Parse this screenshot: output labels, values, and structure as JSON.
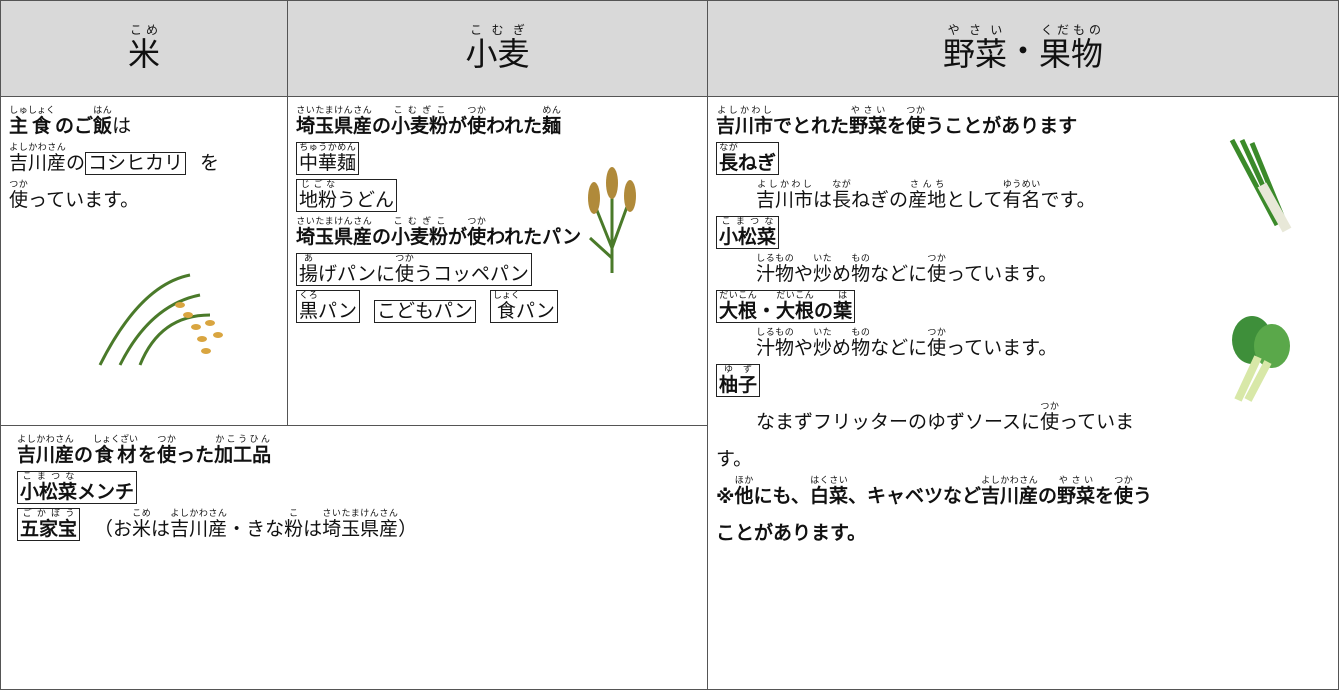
{
  "headers": [
    {
      "parts": [
        {
          "text": "米",
          "ruby": "こめ"
        }
      ]
    },
    {
      "parts": [
        {
          "text": "小麦",
          "ruby": "こむぎ"
        }
      ]
    },
    {
      "parts": [
        {
          "text": "野菜",
          "ruby": "やさい"
        },
        {
          "text": "・"
        },
        {
          "text": "果物",
          "ruby": "くだもの"
        }
      ]
    }
  ],
  "cells": [
    {
      "lines": [
        {
          "parts": [
            {
              "text": "主",
              "ruby": "しゅ",
              "bold": true
            },
            {
              "text": "食",
              "ruby": "しょく",
              "bold": true
            },
            {
              "text": "のご",
              "bold": true
            },
            {
              "text": "飯",
              "ruby": "はん",
              "bold": true
            },
            {
              "text": "は"
            }
          ]
        },
        {
          "parts": [
            {
              "text": "吉川産",
              "ruby": "よしかわさん"
            },
            {
              "text": "の"
            },
            {
              "box": [
                {
                  "text": "コシヒカリ"
                }
              ]
            },
            {
              "text": "を"
            }
          ]
        },
        {
          "parts": [
            {
              "text": "使",
              "ruby": "つか"
            },
            {
              "text": "っています。"
            }
          ]
        }
      ]
    },
    {
      "lines": [
        {
          "bold": true,
          "parts": [
            {
              "text": "埼玉県産",
              "ruby": "さいたまけんさん"
            },
            {
              "text": "の"
            },
            {
              "text": "小麦粉",
              "ruby": "こむぎこ"
            },
            {
              "text": "が"
            },
            {
              "text": "使",
              "ruby": "つか"
            },
            {
              "text": "われた"
            },
            {
              "text": "麺",
              "ruby": "めん"
            }
          ]
        },
        {
          "parts": [
            {
              "box": [
                {
                  "text": "中華麺",
                  "ruby": "ちゅうかめん"
                }
              ]
            }
          ]
        },
        {
          "parts": [
            {
              "box": [
                {
                  "text": "地粉",
                  "ruby": "じごな"
                },
                {
                  "text": "うどん"
                }
              ]
            }
          ]
        },
        {
          "bold": true,
          "parts": [
            {
              "text": "埼玉県産",
              "ruby": "さいたまけんさん"
            },
            {
              "text": "の"
            },
            {
              "text": "小麦粉",
              "ruby": "こむぎこ"
            },
            {
              "text": "が"
            },
            {
              "text": "使",
              "ruby": "つか"
            },
            {
              "text": "われたパン"
            }
          ]
        },
        {
          "parts": [
            {
              "box": [
                {
                  "text": "揚",
                  "ruby": "あ"
                },
                {
                  "text": "げパンに"
                },
                {
                  "text": "使",
                  "ruby": "つか"
                },
                {
                  "text": "うコッペパン"
                }
              ]
            }
          ]
        },
        {
          "parts": [
            {
              "box": [
                {
                  "text": "黒",
                  "ruby": "くろ"
                },
                {
                  "text": "パン"
                }
              ]
            },
            {
              "box": [
                {
                  "text": "こどもパン"
                }
              ]
            },
            {
              "box": [
                {
                  "text": "食",
                  "ruby": "しょく"
                },
                {
                  "text": "パン"
                }
              ]
            }
          ]
        }
      ]
    },
    {
      "lines": [
        {
          "bold": true,
          "parts": [
            {
              "text": "吉川産",
              "ruby": "よしかわさん"
            },
            {
              "text": "の"
            },
            {
              "text": "食材",
              "ruby": "しょくざい"
            },
            {
              "text": "を"
            },
            {
              "text": "使",
              "ruby": "つか"
            },
            {
              "text": "った"
            },
            {
              "text": "加工品",
              "ruby": "かこうひん"
            }
          ]
        },
        {
          "bold": true,
          "parts": [
            {
              "box": [
                {
                  "text": "小松菜",
                  "ruby": "こまつな"
                },
                {
                  "text": "メンチ"
                }
              ]
            }
          ]
        },
        {
          "parts": [
            {
              "box": [
                {
                  "text": "五家宝",
                  "ruby": "ごかぼう",
                  "bold": true
                }
              ]
            },
            {
              "text": "（お"
            },
            {
              "text": "米",
              "ruby": "こめ"
            },
            {
              "text": "は"
            },
            {
              "text": "吉川産",
              "ruby": "よしかわさん"
            },
            {
              "text": "・きな"
            },
            {
              "text": "粉",
              "ruby": "こ"
            },
            {
              "text": "は"
            },
            {
              "text": "埼玉県産",
              "ruby": "さいたまけんさん"
            },
            {
              "text": "）"
            }
          ]
        }
      ]
    },
    {
      "lines": [
        {
          "bold": true,
          "parts": [
            {
              "text": "吉川市",
              "ruby": "よしかわし"
            },
            {
              "text": "でとれた"
            },
            {
              "text": "野菜",
              "ruby": "やさい"
            },
            {
              "text": "を"
            },
            {
              "text": "使",
              "ruby": "つか"
            },
            {
              "text": "うことがあります"
            }
          ]
        },
        {
          "bold": true,
          "parts": [
            {
              "box": [
                {
                  "text": "長",
                  "ruby": "なが"
                },
                {
                  "text": "ねぎ"
                }
              ]
            }
          ]
        },
        {
          "indent": true,
          "parts": [
            {
              "text": "吉川市",
              "ruby": "よしかわし"
            },
            {
              "text": "は"
            },
            {
              "text": "長",
              "ruby": "なが"
            },
            {
              "text": "ねぎの"
            },
            {
              "text": "産地",
              "ruby": "さんち"
            },
            {
              "text": "として"
            },
            {
              "text": "有名",
              "ruby": "ゆうめい"
            },
            {
              "text": "です。"
            }
          ]
        },
        {
          "bold": true,
          "parts": [
            {
              "box": [
                {
                  "text": "小松菜",
                  "ruby": "こまつな"
                }
              ]
            }
          ]
        },
        {
          "indent": true,
          "parts": [
            {
              "text": "汁物",
              "ruby": "しるもの"
            },
            {
              "text": "や"
            },
            {
              "text": "炒",
              "ruby": "いた"
            },
            {
              "text": "め"
            },
            {
              "text": "物",
              "ruby": "もの"
            },
            {
              "text": "などに"
            },
            {
              "text": "使",
              "ruby": "つか"
            },
            {
              "text": "っています。"
            }
          ]
        },
        {
          "bold": true,
          "parts": [
            {
              "box": [
                {
                  "text": "大根",
                  "ruby": "だいこん"
                },
                {
                  "text": "・"
                },
                {
                  "text": "大根",
                  "ruby": "だいこん"
                },
                {
                  "text": "の"
                },
                {
                  "text": "葉",
                  "ruby": "は"
                }
              ]
            }
          ]
        },
        {
          "indent": true,
          "parts": [
            {
              "text": "汁物",
              "ruby": "しるもの"
            },
            {
              "text": "や"
            },
            {
              "text": "炒",
              "ruby": "いた"
            },
            {
              "text": "め"
            },
            {
              "text": "物",
              "ruby": "もの"
            },
            {
              "text": "などに"
            },
            {
              "text": "使",
              "ruby": "つか"
            },
            {
              "text": "っています。"
            }
          ]
        },
        {
          "bold": true,
          "parts": [
            {
              "box": [
                {
                  "text": "柚子",
                  "ruby": "ゆず"
                }
              ]
            }
          ]
        },
        {
          "indent": true,
          "parts": [
            {
              "text": "なまずフリッターのゆずソースに"
            },
            {
              "text": "使",
              "ruby": "つか"
            },
            {
              "text": "っていま"
            }
          ]
        },
        {
          "parts": [
            {
              "text": "す。"
            }
          ]
        },
        {
          "bold": true,
          "parts": [
            {
              "text": "※"
            },
            {
              "text": "他",
              "ruby": "ほか"
            },
            {
              "text": "にも、"
            },
            {
              "text": "白菜",
              "ruby": "はくさい"
            },
            {
              "text": "、キャベツなど"
            },
            {
              "text": "吉川産",
              "ruby": "よしかわさん"
            },
            {
              "text": "の"
            },
            {
              "text": "野菜",
              "ruby": "やさい"
            },
            {
              "text": "を"
            },
            {
              "text": "使",
              "ruby": "つか"
            },
            {
              "text": "う"
            }
          ]
        },
        {
          "bold": true,
          "parts": [
            {
              "text": "ことがあります。"
            }
          ]
        }
      ]
    }
  ]
}
